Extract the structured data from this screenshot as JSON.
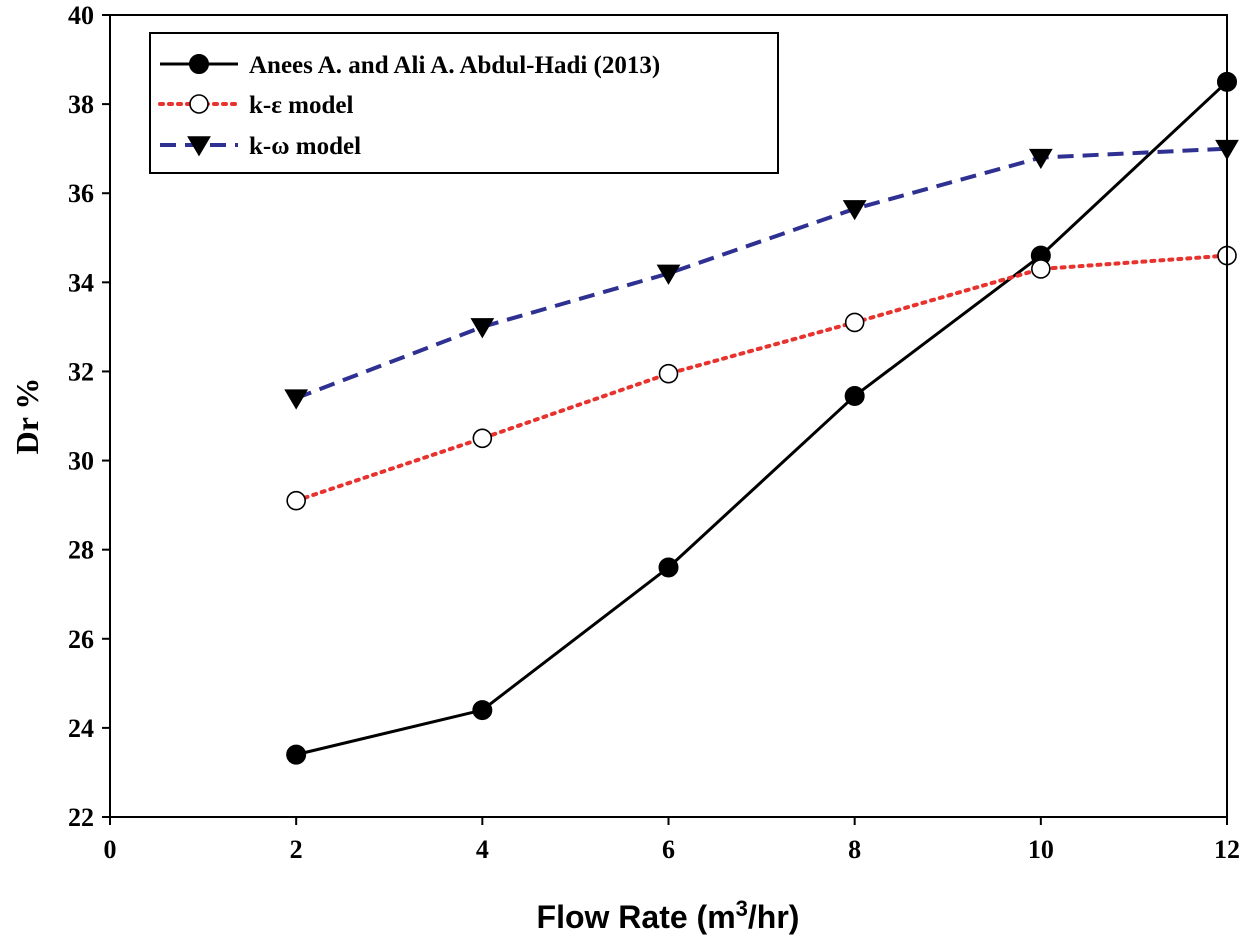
{
  "chart_data": {
    "type": "line",
    "title": "",
    "xlabel_main": "Flow Rate (m",
    "xlabel_sup": "3",
    "xlabel_tail": "/hr)",
    "ylabel": "Dr %",
    "xlim": [
      0,
      12
    ],
    "ylim": [
      22,
      40
    ],
    "x_ticks": [
      "0",
      "2",
      "4",
      "6",
      "8",
      "10",
      "12"
    ],
    "y_ticks": [
      "22",
      "24",
      "26",
      "28",
      "30",
      "32",
      "34",
      "36",
      "38",
      "40"
    ],
    "grid": false,
    "legend_position": "top-left",
    "x": [
      2,
      4,
      6,
      8,
      10,
      12
    ],
    "series": [
      {
        "name": "Anees A. and Ali A. Abdul-Hadi (2013)",
        "values": [
          23.4,
          24.4,
          27.6,
          31.45,
          34.6,
          38.5
        ],
        "color": "#000000",
        "line_style": "solid",
        "marker": "filled-circle"
      },
      {
        "name": "k-ε model",
        "values": [
          29.1,
          30.5,
          31.95,
          33.1,
          34.3,
          34.6
        ],
        "color": "#e8322d",
        "line_style": "dotted",
        "marker": "open-circle"
      },
      {
        "name": "k-ω model",
        "values": [
          31.4,
          33.0,
          34.2,
          35.65,
          36.8,
          37.0
        ],
        "color": "#2e3192",
        "line_style": "dashed",
        "marker": "filled-triangle-down"
      }
    ]
  }
}
